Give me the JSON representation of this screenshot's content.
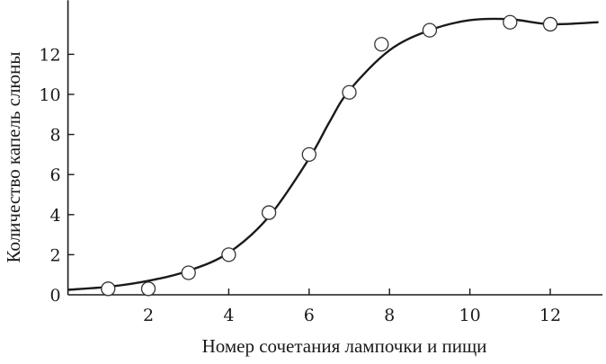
{
  "chart_data": {
    "type": "scatter",
    "title": "",
    "xlabel": "Номер сочетания лампочки и пищи",
    "ylabel": "Количество капель слюны",
    "xlim": [
      0,
      13.3
    ],
    "ylim": [
      0,
      14.7
    ],
    "xticks": [
      2,
      4,
      6,
      8,
      10,
      12
    ],
    "yticks": [
      0,
      2,
      4,
      6,
      8,
      10,
      12
    ],
    "grid": false,
    "points": [
      {
        "x": 1,
        "y": 0.3
      },
      {
        "x": 2,
        "y": 0.3
      },
      {
        "x": 3,
        "y": 1.1
      },
      {
        "x": 4,
        "y": 2.0
      },
      {
        "x": 5,
        "y": 4.1
      },
      {
        "x": 6,
        "y": 7.0
      },
      {
        "x": 7,
        "y": 10.1
      },
      {
        "x": 7.8,
        "y": 12.5
      },
      {
        "x": 9,
        "y": 13.2
      },
      {
        "x": 11,
        "y": 13.6
      },
      {
        "x": 12,
        "y": 13.5
      }
    ],
    "fit_curve": [
      [
        0,
        0.25
      ],
      [
        1,
        0.4
      ],
      [
        2,
        0.7
      ],
      [
        3,
        1.2
      ],
      [
        4,
        2.1
      ],
      [
        5,
        3.9
      ],
      [
        6,
        6.8
      ],
      [
        6.5,
        8.6
      ],
      [
        7,
        10.2
      ],
      [
        8,
        12.2
      ],
      [
        9,
        13.2
      ],
      [
        10,
        13.7
      ],
      [
        11,
        13.75
      ],
      [
        12,
        13.5
      ],
      [
        13.2,
        13.6
      ]
    ],
    "colors": {
      "line": "#1a1a1a",
      "marker_fill": "#ffffff"
    }
  }
}
